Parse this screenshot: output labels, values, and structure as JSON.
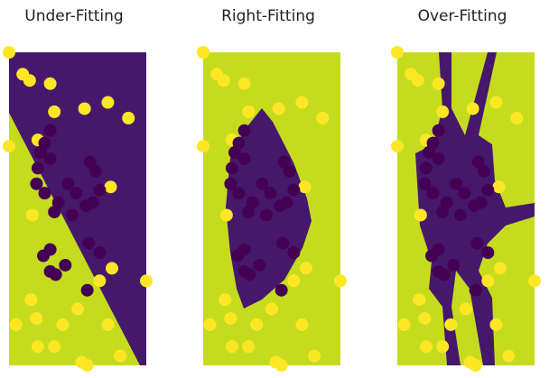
{
  "chart_data": [
    {
      "type": "scatter",
      "title": "Under-Fitting",
      "xlim": [
        0,
        1
      ],
      "ylim": [
        0,
        1
      ],
      "series": [
        {
          "color": "#fde725",
          "x": [
            0,
            0.1,
            0.15,
            0.3,
            0.33,
            0.55,
            0.72,
            0.87,
            0,
            0.21,
            0.74,
            0.17,
            0.75,
            1.0,
            0.66,
            0.16,
            0.5,
            0.2,
            0.05,
            0.39,
            0.72,
            0.21,
            0.33,
            0.53,
            0.57,
            0.81
          ],
          "values": [
            1.0,
            0.93,
            0.91,
            0.9,
            0.81,
            0.82,
            0.84,
            0.79,
            0.7,
            0.72,
            0.57,
            0.48,
            0.31,
            0.27,
            0.27,
            0.21,
            0.18,
            0.15,
            0.13,
            0.13,
            0.13,
            0.06,
            0.06,
            0.01,
            0.0,
            0.03
          ]
        },
        {
          "color": "#440154",
          "x": [
            0.3,
            0.26,
            0.23,
            0.3,
            0.21,
            0.59,
            0.63,
            0.43,
            0.2,
            0.49,
            0.26,
            0.66,
            0.36,
            0.56,
            0.61,
            0.33,
            0.46,
            0.58,
            0.66,
            0.3,
            0.25,
            0.41,
            0.34,
            0.3,
            0.57
          ],
          "values": [
            0.75,
            0.71,
            0.68,
            0.66,
            0.63,
            0.65,
            0.62,
            0.58,
            0.58,
            0.55,
            0.55,
            0.56,
            0.52,
            0.51,
            0.52,
            0.49,
            0.48,
            0.39,
            0.36,
            0.37,
            0.35,
            0.32,
            0.29,
            0.3,
            0.24
          ]
        }
      ]
    },
    {
      "type": "scatter",
      "title": "Right-Fitting",
      "xlim": [
        0,
        1
      ],
      "ylim": [
        0,
        1
      ],
      "series": [
        {
          "color": "#fde725",
          "x": [
            0,
            0.1,
            0.15,
            0.3,
            0.33,
            0.55,
            0.72,
            0.87,
            0,
            0.21,
            0.74,
            0.17,
            0.75,
            1.0,
            0.66,
            0.16,
            0.5,
            0.2,
            0.05,
            0.39,
            0.72,
            0.21,
            0.33,
            0.53,
            0.57,
            0.81
          ],
          "values": [
            1.0,
            0.93,
            0.91,
            0.9,
            0.81,
            0.82,
            0.84,
            0.79,
            0.7,
            0.72,
            0.57,
            0.48,
            0.31,
            0.27,
            0.27,
            0.21,
            0.18,
            0.15,
            0.13,
            0.13,
            0.13,
            0.06,
            0.06,
            0.01,
            0.0,
            0.03
          ]
        },
        {
          "color": "#440154",
          "x": [
            0.3,
            0.26,
            0.23,
            0.3,
            0.21,
            0.59,
            0.63,
            0.43,
            0.2,
            0.49,
            0.26,
            0.66,
            0.36,
            0.56,
            0.61,
            0.33,
            0.46,
            0.58,
            0.66,
            0.3,
            0.25,
            0.41,
            0.34,
            0.3,
            0.57
          ],
          "values": [
            0.75,
            0.71,
            0.68,
            0.66,
            0.63,
            0.65,
            0.62,
            0.58,
            0.58,
            0.55,
            0.55,
            0.56,
            0.52,
            0.51,
            0.52,
            0.49,
            0.48,
            0.39,
            0.36,
            0.37,
            0.35,
            0.32,
            0.29,
            0.3,
            0.24
          ]
        }
      ]
    },
    {
      "type": "scatter",
      "title": "Over-Fitting",
      "xlim": [
        0,
        1
      ],
      "ylim": [
        0,
        1
      ],
      "series": [
        {
          "color": "#fde725",
          "x": [
            0,
            0.1,
            0.15,
            0.3,
            0.33,
            0.55,
            0.72,
            0.87,
            0,
            0.21,
            0.74,
            0.17,
            0.75,
            1.0,
            0.66,
            0.16,
            0.5,
            0.2,
            0.05,
            0.39,
            0.72,
            0.21,
            0.33,
            0.53,
            0.57,
            0.81
          ],
          "values": [
            1.0,
            0.93,
            0.91,
            0.9,
            0.81,
            0.82,
            0.84,
            0.79,
            0.7,
            0.72,
            0.57,
            0.48,
            0.31,
            0.27,
            0.27,
            0.21,
            0.18,
            0.15,
            0.13,
            0.13,
            0.13,
            0.06,
            0.06,
            0.01,
            0.0,
            0.03
          ]
        },
        {
          "color": "#440154",
          "x": [
            0.3,
            0.26,
            0.23,
            0.3,
            0.21,
            0.59,
            0.63,
            0.43,
            0.2,
            0.49,
            0.26,
            0.66,
            0.36,
            0.56,
            0.61,
            0.33,
            0.46,
            0.58,
            0.66,
            0.3,
            0.25,
            0.41,
            0.34,
            0.3,
            0.57
          ],
          "values": [
            0.75,
            0.71,
            0.68,
            0.66,
            0.63,
            0.65,
            0.62,
            0.58,
            0.58,
            0.55,
            0.55,
            0.56,
            0.52,
            0.51,
            0.52,
            0.49,
            0.48,
            0.39,
            0.36,
            0.37,
            0.35,
            0.32,
            0.29,
            0.3,
            0.24
          ]
        }
      ]
    }
  ]
}
